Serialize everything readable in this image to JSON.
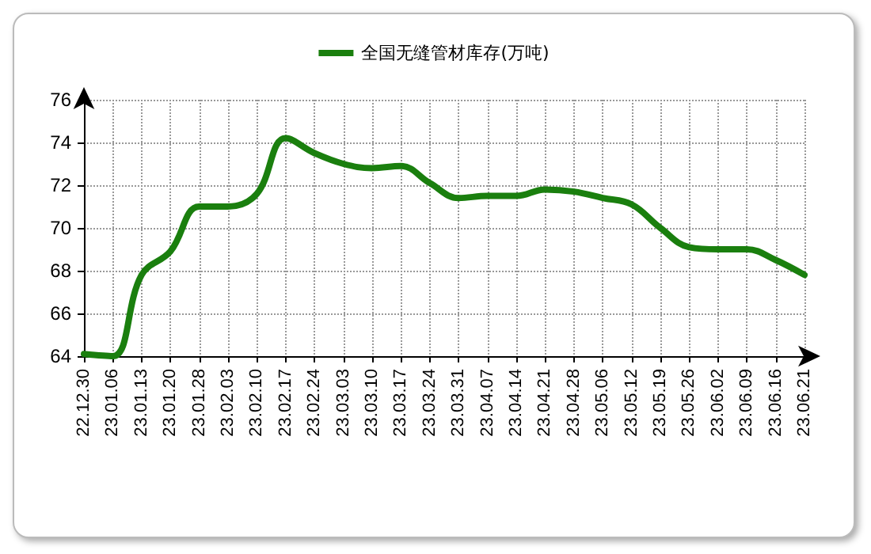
{
  "chart_data": {
    "type": "line",
    "categories": [
      "22.12.30",
      "23.01.06",
      "23.01.13",
      "23.01.20",
      "23.01.28",
      "23.02.03",
      "23.02.10",
      "23.02.17",
      "23.02.24",
      "23.03.03",
      "23.03.10",
      "23.03.17",
      "23.03.24",
      "23.03.31",
      "23.04.07",
      "23.04.14",
      "23.04.21",
      "23.04.28",
      "23.05.06",
      "23.05.12",
      "23.05.19",
      "23.05.26",
      "23.06.02",
      "23.06.09",
      "23.06.16",
      "23.06.21"
    ],
    "series": [
      {
        "name": "全国无缝管材库存(万吨)",
        "color": "#1a7f0e",
        "values": [
          64.1,
          64.0,
          67.8,
          68.9,
          71.0,
          71.0,
          71.6,
          74.2,
          73.5,
          73.0,
          72.8,
          72.9,
          72.1,
          71.4,
          71.5,
          71.5,
          71.8,
          71.7,
          71.4,
          71.1,
          70.0,
          69.1,
          69.0,
          69.0,
          68.5,
          67.8
        ]
      }
    ],
    "ylim": [
      64,
      76
    ],
    "yticks": [
      64,
      66,
      68,
      70,
      72,
      74,
      76
    ],
    "grid": true,
    "legend": "top",
    "marker": "none",
    "line_style": "solid"
  }
}
